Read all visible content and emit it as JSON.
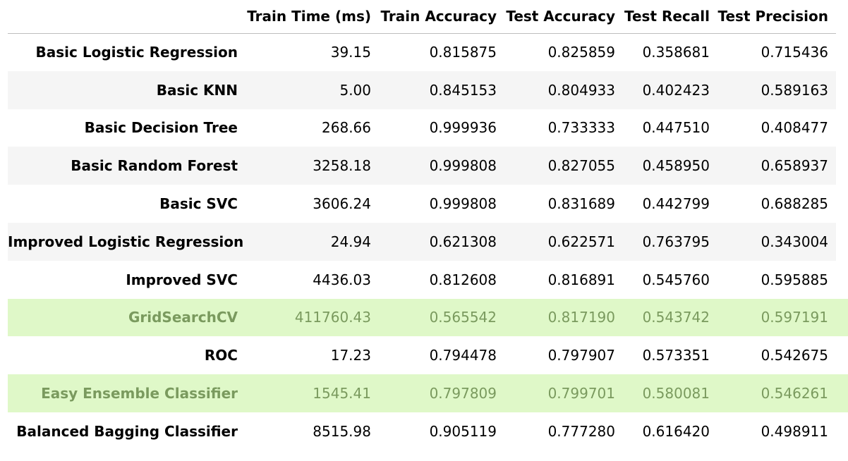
{
  "table": {
    "columns": [
      "",
      "Train Time (ms)",
      "Train Accuracy",
      "Test Accuracy",
      "Test Recall",
      "Test Precision"
    ],
    "rows": [
      {
        "label": "Basic Logistic Regression",
        "values": [
          "39.15",
          "0.815875",
          "0.825859",
          "0.358681",
          "0.715436"
        ],
        "highlighted": false
      },
      {
        "label": "Basic KNN",
        "values": [
          "5.00",
          "0.845153",
          "0.804933",
          "0.402423",
          "0.589163"
        ],
        "highlighted": false
      },
      {
        "label": "Basic Decision Tree",
        "values": [
          "268.66",
          "0.999936",
          "0.733333",
          "0.447510",
          "0.408477"
        ],
        "highlighted": false
      },
      {
        "label": "Basic Random Forest",
        "values": [
          "3258.18",
          "0.999808",
          "0.827055",
          "0.458950",
          "0.658937"
        ],
        "highlighted": false
      },
      {
        "label": "Basic SVC",
        "values": [
          "3606.24",
          "0.999808",
          "0.831689",
          "0.442799",
          "0.688285"
        ],
        "highlighted": false
      },
      {
        "label": "Improved Logistic Regression",
        "values": [
          "24.94",
          "0.621308",
          "0.622571",
          "0.763795",
          "0.343004"
        ],
        "highlighted": false
      },
      {
        "label": "Improved SVC",
        "values": [
          "4436.03",
          "0.812608",
          "0.816891",
          "0.545760",
          "0.595885"
        ],
        "highlighted": false
      },
      {
        "label": "GridSearchCV",
        "values": [
          "411760.43",
          "0.565542",
          "0.817190",
          "0.543742",
          "0.597191"
        ],
        "highlighted": true
      },
      {
        "label": "ROC",
        "values": [
          "17.23",
          "0.794478",
          "0.797907",
          "0.573351",
          "0.542675"
        ],
        "highlighted": false
      },
      {
        "label": "Easy Ensemble Classifier",
        "values": [
          "1545.41",
          "0.797809",
          "0.799701",
          "0.580081",
          "0.546261"
        ],
        "highlighted": true
      },
      {
        "label": "Balanced Bagging Classifier",
        "values": [
          "8515.98",
          "0.905119",
          "0.777280",
          "0.616420",
          "0.498911"
        ],
        "highlighted": false
      }
    ]
  },
  "colors": {
    "highlight_background": "#dff8c8",
    "highlight_text": "#7a9a5e",
    "stripe_background": "#f5f5f5"
  }
}
